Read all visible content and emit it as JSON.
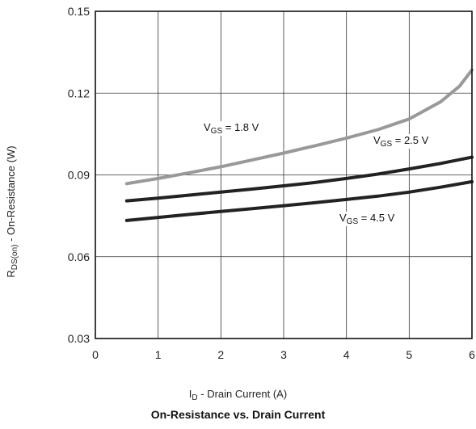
{
  "chart_data": {
    "type": "line",
    "title": "On-Resistance vs. Drain Current",
    "xlabel": {
      "main": "I",
      "sub": "D",
      "rest": " - Drain Current (A)"
    },
    "ylabel": {
      "main": "R",
      "sub": "DS(on)",
      "rest": " - On-Resistance (W)"
    },
    "xlim": [
      0,
      6
    ],
    "ylim": [
      0.03,
      0.15
    ],
    "xticks": [
      0,
      1,
      2,
      3,
      4,
      5,
      6
    ],
    "yticks": [
      0.03,
      0.06,
      0.09,
      0.12,
      0.15
    ],
    "xtick_labels": [
      "0",
      "1",
      "2",
      "3",
      "4",
      "5",
      "6"
    ],
    "ytick_labels": [
      "0.03",
      "0.06",
      "0.09",
      "0.12",
      "0.15"
    ],
    "grid": true,
    "series": [
      {
        "name": "VGS = 1.8 V",
        "label": {
          "main": "V",
          "sub": "GS",
          "rest": " = 1.8 V"
        },
        "color": "#999999",
        "x": [
          0.5,
          1.0,
          1.5,
          2.0,
          2.5,
          3.0,
          3.5,
          4.0,
          4.5,
          5.0,
          5.5,
          5.8,
          6.0
        ],
        "y": [
          0.0868,
          0.0887,
          0.0908,
          0.093,
          0.0955,
          0.098,
          0.1007,
          0.1035,
          0.1066,
          0.1105,
          0.1168,
          0.1225,
          0.1285
        ]
      },
      {
        "name": "VGS = 2.5 V",
        "label": {
          "main": "V",
          "sub": "GS",
          "rest": " = 2.5 V"
        },
        "color": "#222222",
        "x": [
          0.5,
          1.0,
          1.5,
          2.0,
          2.5,
          3.0,
          3.5,
          4.0,
          4.5,
          5.0,
          5.5,
          6.0
        ],
        "y": [
          0.0805,
          0.0815,
          0.0826,
          0.0837,
          0.0848,
          0.086,
          0.0872,
          0.0887,
          0.0903,
          0.0922,
          0.0942,
          0.0965
        ]
      },
      {
        "name": "VGS = 4.5 V",
        "label": {
          "main": "V",
          "sub": "GS",
          "rest": " = 4.5 V"
        },
        "color": "#222222",
        "x": [
          0.5,
          1.0,
          1.5,
          2.0,
          2.5,
          3.0,
          3.5,
          4.0,
          4.5,
          5.0,
          5.5,
          6.0
        ],
        "y": [
          0.0733,
          0.0744,
          0.0755,
          0.0766,
          0.0776,
          0.0787,
          0.0798,
          0.081,
          0.0822,
          0.0837,
          0.0855,
          0.0875
        ]
      }
    ]
  }
}
